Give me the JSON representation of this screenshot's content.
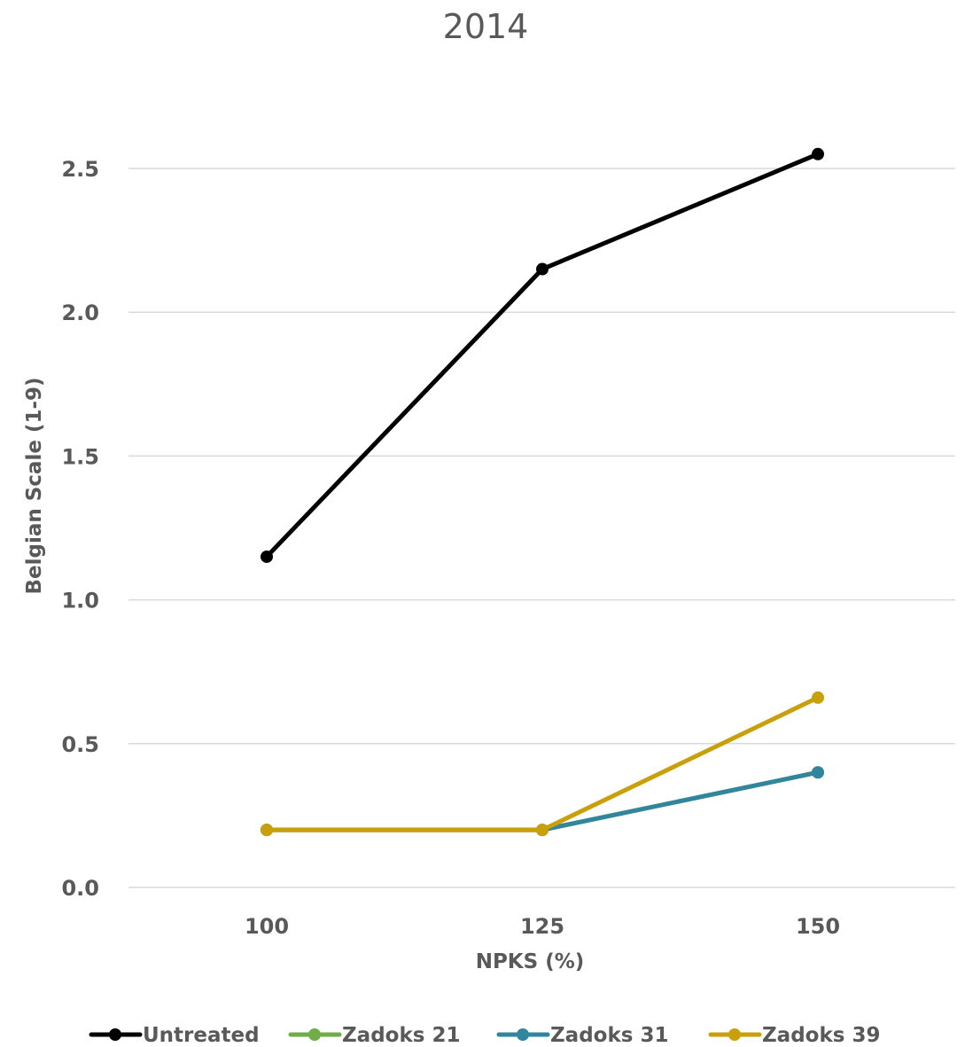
{
  "chart_data": {
    "type": "line",
    "title": "2014",
    "xlabel": "NPKS (%)",
    "ylabel": "Belgian Scale (1-9)",
    "categories": [
      "100",
      "125",
      "150"
    ],
    "ylim": [
      0,
      2.5
    ],
    "yticks": [
      "0.0",
      "0.5",
      "1.0",
      "1.5",
      "2.0",
      "2.5"
    ],
    "grid": true,
    "legend": "bottom",
    "series": [
      {
        "name": "Untreated",
        "color": "#000000",
        "values": [
          1.15,
          2.15,
          2.55
        ]
      },
      {
        "name": "Zadoks 21",
        "color": "#70ad47",
        "values": [
          0.2,
          0.2,
          0.4
        ]
      },
      {
        "name": "Zadoks 31",
        "color": "#31859c",
        "values": [
          0.2,
          0.2,
          0.4
        ]
      },
      {
        "name": "Zadoks 39",
        "color": "#c9a00b",
        "values": [
          0.2,
          0.2,
          0.66
        ]
      }
    ]
  }
}
